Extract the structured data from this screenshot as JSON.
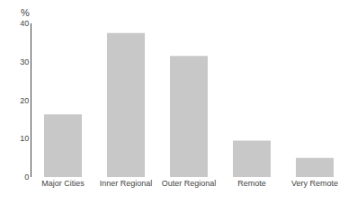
{
  "chart_data": {
    "type": "bar",
    "ylabel": "%",
    "categories": [
      "Major Cities",
      "Inner Regional",
      "Outer Regional",
      "Remote",
      "Very Remote"
    ],
    "values": [
      16.3,
      37.5,
      31.5,
      9.5,
      5.0
    ],
    "color": "#c8c8c8",
    "ylim": [
      0,
      40
    ],
    "yticks": [
      0,
      10,
      20,
      30,
      40
    ],
    "grid": false
  }
}
